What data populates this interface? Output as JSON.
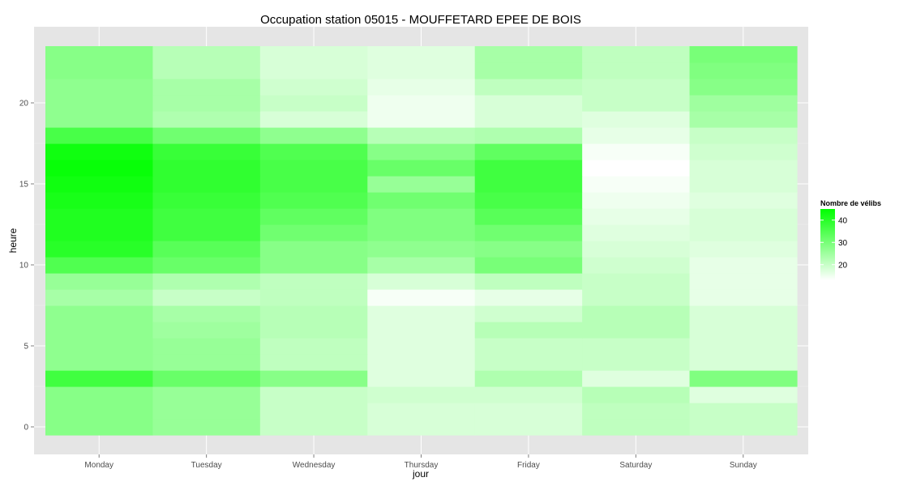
{
  "chart_data": {
    "type": "heatmap",
    "title": "Occupation station 05015 - MOUFFETARD EPEE DE BOIS",
    "xlabel": "jour",
    "ylabel": "heure",
    "categories": [
      "Monday",
      "Tuesday",
      "Wednesday",
      "Thursday",
      "Friday",
      "Saturday",
      "Sunday"
    ],
    "hours": [
      0,
      1,
      2,
      3,
      4,
      5,
      6,
      7,
      8,
      9,
      10,
      11,
      12,
      13,
      14,
      15,
      16,
      17,
      18,
      19,
      20,
      21,
      22,
      23
    ],
    "ylim": [
      -0.5,
      23.5
    ],
    "yticks": [
      0,
      5,
      10,
      15,
      20
    ],
    "grid": true,
    "legend": {
      "title": "Nombre de vélibs",
      "ticks": [
        20,
        30,
        40
      ],
      "position": "right"
    },
    "color_scale": {
      "low": "#ffffff",
      "high": "#00ff00",
      "min": 13,
      "max": 45
    },
    "values": [
      [
        28,
        26,
        20,
        18,
        18,
        21,
        20
      ],
      [
        28,
        26,
        20,
        18,
        18,
        21,
        20
      ],
      [
        28,
        26,
        20,
        19,
        19,
        22,
        17
      ],
      [
        37,
        32,
        28,
        17,
        23,
        17,
        29
      ],
      [
        27,
        26,
        21,
        17,
        20,
        20,
        18
      ],
      [
        27,
        26,
        21,
        17,
        20,
        20,
        18
      ],
      [
        27,
        25,
        22,
        17,
        22,
        22,
        18
      ],
      [
        27,
        24,
        22,
        17,
        19,
        22,
        18
      ],
      [
        24,
        20,
        21,
        14,
        16,
        20,
        16
      ],
      [
        26,
        23,
        21,
        18,
        21,
        20,
        16
      ],
      [
        35,
        32,
        28,
        24,
        30,
        19,
        16
      ],
      [
        40,
        34,
        28,
        27,
        28,
        18,
        17
      ],
      [
        41,
        37,
        31,
        29,
        31,
        17,
        18
      ],
      [
        41,
        37,
        33,
        29,
        34,
        16,
        18
      ],
      [
        42,
        38,
        35,
        31,
        36,
        15,
        17
      ],
      [
        43,
        39,
        36,
        26,
        37,
        14,
        18
      ],
      [
        44,
        39,
        36,
        32,
        37,
        13,
        18
      ],
      [
        43,
        38,
        35,
        28,
        33,
        14,
        19
      ],
      [
        36,
        31,
        27,
        22,
        23,
        16,
        20
      ],
      [
        27,
        23,
        18,
        15,
        18,
        17,
        24
      ],
      [
        27,
        24,
        20,
        15,
        18,
        20,
        25
      ],
      [
        27,
        24,
        19,
        16,
        21,
        20,
        28
      ],
      [
        28,
        22,
        18,
        17,
        24,
        21,
        29
      ],
      [
        28,
        22,
        18,
        17,
        24,
        21,
        30
      ]
    ]
  }
}
